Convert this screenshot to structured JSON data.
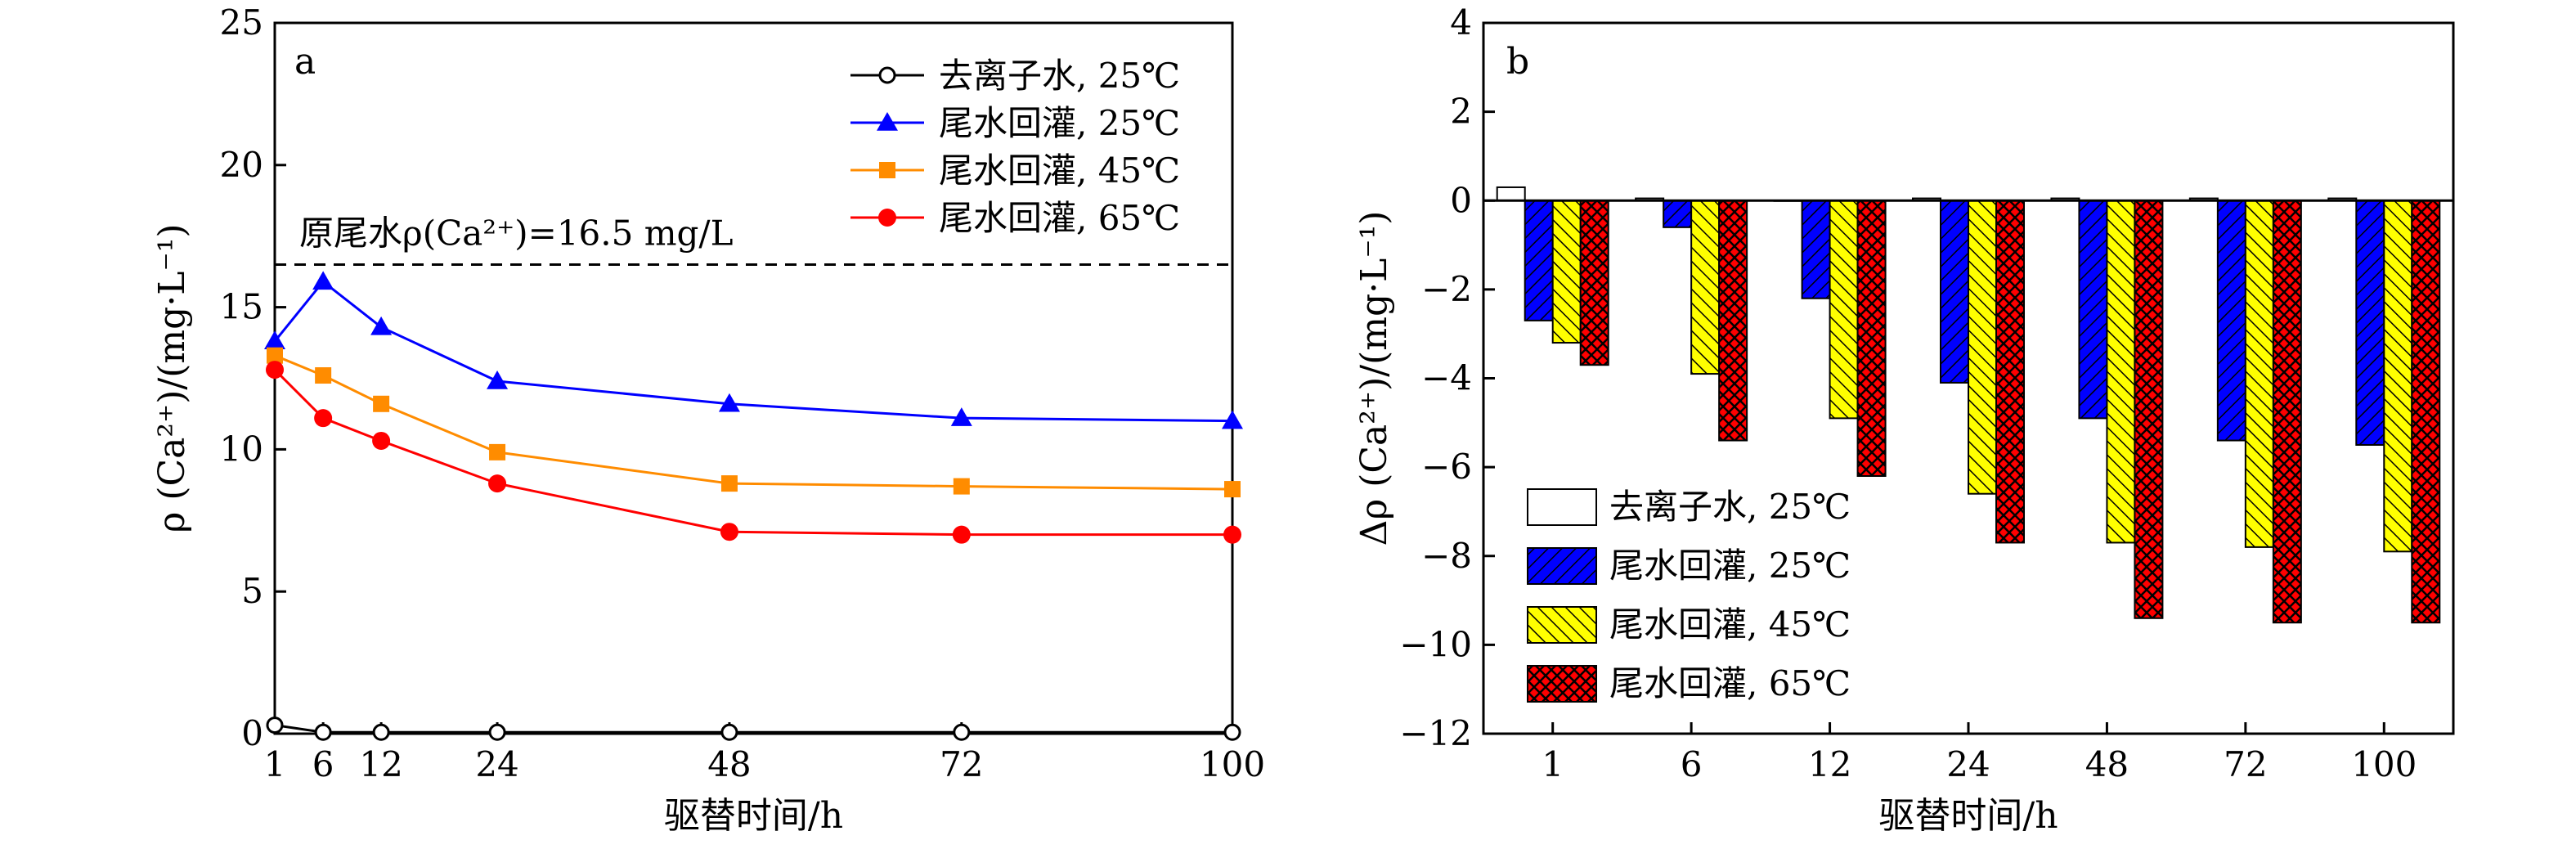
{
  "chart_data": [
    {
      "type": "line",
      "panel_label": "a",
      "xlabel": "驱替时间/h",
      "ylabel": "ρ (Ca²⁺)/(mg·L⁻¹)",
      "x_ticks": [
        1,
        6,
        12,
        24,
        48,
        72,
        100
      ],
      "y_ticks": [
        0,
        5,
        10,
        15,
        20,
        25
      ],
      "xlim": [
        1,
        100
      ],
      "ylim": [
        0,
        25
      ],
      "grid": false,
      "legend_position": "top-right",
      "reference_line": {
        "y": 16.5,
        "label": "原尾水ρ(Ca²⁺)=16.5 mg/L",
        "style": "dashed"
      },
      "x": [
        1,
        6,
        12,
        24,
        48,
        72,
        100
      ],
      "series": [
        {
          "name": "去离子水, 25℃",
          "marker": "circle-open",
          "color": "#000000",
          "values": [
            0.3,
            0.05,
            0.05,
            0.05,
            0.05,
            0.05,
            0.05
          ]
        },
        {
          "name": "尾水回灌, 25℃",
          "marker": "triangle",
          "color": "#0000ff",
          "values": [
            13.8,
            15.9,
            14.3,
            12.4,
            11.6,
            11.1,
            11.0
          ]
        },
        {
          "name": "尾水回灌, 45℃",
          "marker": "square",
          "color": "#ff8c00",
          "values": [
            13.3,
            12.6,
            11.6,
            9.9,
            8.8,
            8.7,
            8.6
          ]
        },
        {
          "name": "尾水回灌, 65℃",
          "marker": "circle",
          "color": "#ff0000",
          "values": [
            12.8,
            11.1,
            10.3,
            8.8,
            7.1,
            7.0,
            7.0
          ]
        }
      ]
    },
    {
      "type": "bar",
      "panel_label": "b",
      "xlabel": "驱替时间/h",
      "ylabel": "Δρ (Ca²⁺)/(mg·L⁻¹)",
      "categories": [
        "1",
        "6",
        "12",
        "24",
        "48",
        "72",
        "100"
      ],
      "y_ticks": [
        -12,
        -10,
        -8,
        -6,
        -4,
        -2,
        0,
        2,
        4
      ],
      "y_tick_labels": [
        "−12",
        "−10",
        "−8",
        "−6",
        "−4",
        "−2",
        "0",
        "2",
        "4"
      ],
      "ylim": [
        -12,
        4
      ],
      "grid": false,
      "legend_position": "bottom-left",
      "series": [
        {
          "name": "去离子水, 25℃",
          "color": "#ffffff",
          "pattern": "none",
          "values": [
            0.3,
            0.05,
            0.0,
            0.05,
            0.05,
            0.05,
            0.05
          ]
        },
        {
          "name": "尾水回灌, 25℃",
          "color": "#0000ff",
          "pattern": "hatch",
          "values": [
            -2.7,
            -0.6,
            -2.2,
            -4.1,
            -4.9,
            -5.4,
            -5.5
          ]
        },
        {
          "name": "尾水回灌, 45℃",
          "color": "#ffff00",
          "pattern": "hatch",
          "values": [
            -3.2,
            -3.9,
            -4.9,
            -6.6,
            -7.7,
            -7.8,
            -7.9
          ]
        },
        {
          "name": "尾水回灌, 65℃",
          "color": "#ff0000",
          "pattern": "crosshatch",
          "values": [
            -3.7,
            -5.4,
            -6.2,
            -7.7,
            -9.4,
            -9.5,
            -9.5
          ]
        }
      ]
    }
  ]
}
